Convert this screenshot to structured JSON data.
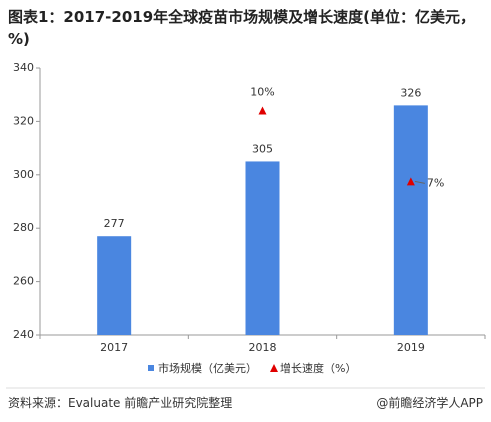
{
  "chart_data": {
    "type": "bar",
    "title": "图表1：2017-2019年全球疫苗市场规模及增长速度(单位：亿美元，%)",
    "categories": [
      "2017",
      "2018",
      "2019"
    ],
    "series": [
      {
        "name": "市场规模（亿美元）",
        "color": "#4a86e0",
        "values": [
          277,
          305,
          326
        ]
      },
      {
        "name": "增长速度（%）",
        "color": "#e00000",
        "type": "scatter",
        "axis": "y2",
        "values": [
          null,
          10,
          7
        ],
        "value_labels": [
          null,
          "10%",
          "7%"
        ]
      }
    ],
    "ylim": [
      240,
      340
    ],
    "yticks": [
      240,
      260,
      280,
      300,
      320,
      340
    ],
    "y2lim": [
      0.5,
      11.8
    ],
    "legend": "bottom",
    "source": "资料来源：Evaluate 前瞻产业研究院整理",
    "credit": "@前瞻经济学人APP"
  }
}
